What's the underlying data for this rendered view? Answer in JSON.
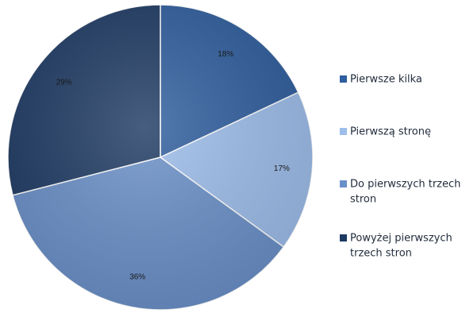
{
  "chart_data": {
    "type": "pie",
    "title": "",
    "categories": [
      "Pierwsze kilka",
      "Pierwszą stronę",
      "Do pierwszych trzech stron",
      "Powyżej pierwszych trzech stron"
    ],
    "values": [
      18,
      17,
      36,
      29
    ],
    "value_labels": [
      "18%",
      "17%",
      "36%",
      "29%"
    ],
    "legend_lines": [
      [
        "Pierwsze kilka"
      ],
      [
        "Pierwszą stronę"
      ],
      [
        "Do pierwszych trzech",
        "stron"
      ],
      [
        "Powyżej pierwszych",
        "trzech stron"
      ]
    ],
    "colors": [
      "#2f5e9e",
      "#9dbdea",
      "#6a90c8",
      "#1e3a63"
    ],
    "start_angle_deg": 0,
    "direction": "clockwise",
    "legend_position": "right"
  }
}
